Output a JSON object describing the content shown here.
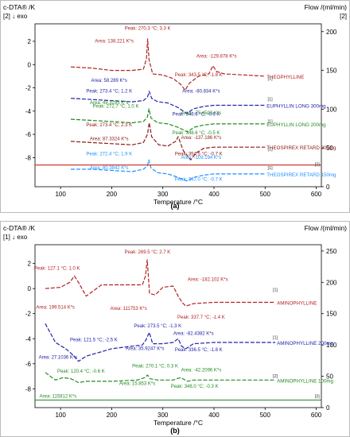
{
  "chart_data": [
    {
      "type": "line",
      "panel_label": "(a)",
      "ylabel_left": "c-DTA® /K",
      "ylabel_left_sub": "[2] ↓ exo",
      "ylabel_right": "Flow /(ml/min)",
      "ylabel_right_sub": "[2]",
      "xlabel": "Temperature /°C",
      "xlim": [
        50,
        610
      ],
      "ylim_left": [
        -10.5,
        3.5
      ],
      "ylim_right": [
        0,
        210
      ],
      "xticks": [
        100,
        200,
        300,
        400,
        500,
        600
      ],
      "yticks_left": [
        -8,
        -6,
        -4,
        -2,
        0,
        2
      ],
      "yticks_right": [
        0,
        50,
        100,
        150,
        200
      ],
      "series": [
        {
          "name": "THEOPHYLLINE",
          "color": "#b22222",
          "x": [
            120,
            160,
            200,
            240,
            262,
            268,
            270.3,
            273,
            280,
            300,
            320,
            335,
            343.5,
            352,
            370,
            390,
            398,
            405,
            420,
            460,
            500
          ],
          "y": [
            -0.2,
            -0.3,
            -0.5,
            -0.5,
            -0.4,
            0.5,
            2.2,
            0.4,
            -0.8,
            -0.9,
            -1.2,
            -1.7,
            -2.2,
            -1.6,
            -1.0,
            -0.8,
            -0.1,
            -0.6,
            -0.8,
            -0.9,
            -1.0
          ]
        },
        {
          "name": "EUPHYLLIN LONG 300mg",
          "color": "#2222aa",
          "x": [
            120,
            160,
            200,
            240,
            262,
            270,
            273.4,
            278,
            290,
            310,
            330,
            346.6,
            360,
            380,
            400,
            440,
            500
          ],
          "y": [
            -2.9,
            -3.0,
            -3.1,
            -3.2,
            -3.1,
            -2.8,
            -2.3,
            -2.9,
            -3.2,
            -3.3,
            -3.7,
            -4.2,
            -3.8,
            -3.6,
            -3.5,
            -3.5,
            -3.5
          ]
        },
        {
          "name": "EUPHYLLIN LONG 200mg",
          "color": "#228b22",
          "x": [
            120,
            160,
            200,
            240,
            262,
            270,
            272.7,
            277,
            290,
            310,
            330,
            348.6,
            360,
            380,
            400,
            440,
            500
          ],
          "y": [
            -4.7,
            -4.8,
            -4.9,
            -5.0,
            -4.9,
            -4.5,
            -3.8,
            -4.6,
            -5.0,
            -5.1,
            -5.4,
            -5.8,
            -5.4,
            -5.2,
            -5.1,
            -5.1,
            -5.1
          ]
        },
        {
          "name": "THEOSPIREX RETARD 300mg",
          "color": "#8b1a1a",
          "x": [
            120,
            160,
            200,
            240,
            262,
            270,
            273.4,
            278,
            292,
            310,
            325,
            330,
            340,
            354.5,
            365,
            380,
            400,
            440,
            500
          ],
          "y": [
            -6.6,
            -6.7,
            -6.8,
            -6.9,
            -6.7,
            -6.0,
            -5.0,
            -6.2,
            -6.9,
            -7.0,
            -6.6,
            -6.2,
            -7.4,
            -8.2,
            -7.6,
            -7.2,
            -7.1,
            -7.1,
            -7.1
          ]
        },
        {
          "name": "THEOSPIREX RETARD 150mg",
          "color": "#1e90ff",
          "x": [
            120,
            160,
            200,
            240,
            262,
            270,
            272.4,
            277,
            290,
            310,
            330,
            347,
            360,
            380,
            400,
            440,
            500
          ],
          "y": [
            -9.0,
            -9.0,
            -9.1,
            -9.2,
            -9.0,
            -8.7,
            -8.2,
            -8.9,
            -9.3,
            -9.4,
            -9.7,
            -10.0,
            -9.7,
            -9.5,
            -9.4,
            -9.4,
            -9.4
          ]
        },
        {
          "name": "Flow",
          "color": "#cc2222",
          "axis": "right",
          "x": [
            50,
            610
          ],
          "y": [
            28,
            28
          ]
        }
      ],
      "annotations": [
        {
          "text": "Peak: 270.3 °C; 3.3 K",
          "x": 270.3,
          "y": 3.0,
          "color": "#b22222"
        },
        {
          "text": "Area: 138.221 K*s",
          "x": 205,
          "y": 1.9,
          "color": "#b22222"
        },
        {
          "text": "Area: -129.878 K*s",
          "x": 405,
          "y": 0.6,
          "color": "#b22222"
        },
        {
          "text": "Peak: 343.5 °C; -1.8 K",
          "x": 370,
          "y": -1.0,
          "color": "#b22222"
        },
        {
          "text": "Area: 58.289 K*s",
          "x": 195,
          "y": -1.5,
          "color": "#2222aa"
        },
        {
          "text": "Peak: 273.4 °C; 1.2 K",
          "x": 195,
          "y": -2.4,
          "color": "#2222aa"
        },
        {
          "text": "Area: -80.834 K*s",
          "x": 375,
          "y": -2.4,
          "color": "#2222aa"
        },
        {
          "text": "Area: 49.3295 K*s",
          "x": 195,
          "y": -3.4,
          "color": "#228b22"
        },
        {
          "text": "Peak: 272.7 °C; 1.0 K",
          "x": 208,
          "y": -3.7,
          "color": "#228b22"
        },
        {
          "text": "Peak: 346.6 °C; -0.6 K",
          "x": 365,
          "y": -4.4,
          "color": "#2222aa"
        },
        {
          "text": "Area: -75.4503 K*s",
          "x": 375,
          "y": -4.3,
          "color": "#228b22"
        },
        {
          "text": "Peak: 273.4 °C; 2.3 K",
          "x": 195,
          "y": -5.3,
          "color": "#8b1a1a"
        },
        {
          "text": "Peak: 348.6 °C; -0.5 K",
          "x": 365,
          "y": -6.0,
          "color": "#228b22"
        },
        {
          "text": "Area: 87.3324 K*s",
          "x": 195,
          "y": -6.5,
          "color": "#8b1a1a"
        },
        {
          "text": "Area: -137.186 K*s",
          "x": 375,
          "y": -6.4,
          "color": "#8b1a1a"
        },
        {
          "text": "Peak: 354.5 °C; -0.7 K",
          "x": 370,
          "y": -7.8,
          "color": "#8b1a1a"
        },
        {
          "text": "Peak: 272.4 °C; 1.9 K",
          "x": 195,
          "y": -7.8,
          "color": "#1e90ff"
        },
        {
          "text": "Area: -109.194 K*s",
          "x": 375,
          "y": -8.1,
          "color": "#1e90ff"
        },
        {
          "text": "Area: 80.3842 K*s",
          "x": 195,
          "y": -9.0,
          "color": "#1e90ff"
        },
        {
          "text": "Peak: 347.0 °C; -0.7 K",
          "x": 370,
          "y": -10.0,
          "color": "#1e90ff"
        }
      ],
      "curve_tags": [
        {
          "text": "[1]",
          "x": 505,
          "y": -1.3
        },
        {
          "text": "[1]",
          "x": 505,
          "y": -3.1
        },
        {
          "text": "[1]",
          "x": 505,
          "y": -5.0
        },
        {
          "text": "[1]",
          "x": 505,
          "y": -7.4
        },
        {
          "text": "[1]",
          "x": 505,
          "y": -9.0
        },
        {
          "text": "[2]",
          "x": 597,
          "y": -8.7
        }
      ]
    },
    {
      "type": "line",
      "panel_label": "(b)",
      "ylabel_left": "c-DTA® /K",
      "ylabel_left_sub": "[1] ↓ exo",
      "ylabel_right": "Flow /(ml/min)",
      "ylabel_right_sub": "",
      "xlabel": "Temperature /°C",
      "xlim": [
        50,
        610
      ],
      "ylim_left": [
        -9.5,
        3.5
      ],
      "ylim_right": [
        0,
        260
      ],
      "xticks": [
        100,
        200,
        300,
        400,
        500,
        600
      ],
      "yticks_left": [
        -8,
        -6,
        -4,
        -2,
        0,
        2
      ],
      "yticks_right": [
        0,
        50,
        100,
        150,
        200,
        250
      ],
      "series": [
        {
          "name": "AMINOPHYLLINE",
          "color": "#b22222",
          "x": [
            70,
            100,
            118,
            127.1,
            135,
            150,
            180,
            230,
            260,
            266,
            269.5,
            274,
            285,
            300,
            320,
            330,
            337.7,
            345,
            360,
            400,
            460,
            520
          ],
          "y": [
            0.0,
            0.1,
            0.5,
            1.0,
            0.5,
            -0.6,
            0.3,
            0.3,
            0.3,
            1.0,
            2.3,
            -0.4,
            -0.5,
            0.1,
            0.2,
            -0.6,
            -1.1,
            -1.4,
            -1.2,
            -1.1,
            -1.1,
            -1.1
          ]
        },
        {
          "name": "AMINOPHYLLINE 200mg",
          "color": "#2222aa",
          "x": [
            70,
            90,
            110,
            121.5,
            135,
            150,
            200,
            240,
            260,
            267,
            273.5,
            280,
            300,
            320,
            330,
            336.5,
            345,
            360,
            400,
            460,
            520
          ],
          "y": [
            -2.8,
            -4.3,
            -4.8,
            -5.2,
            -5.8,
            -5.4,
            -4.8,
            -4.6,
            -4.5,
            -4.1,
            -3.5,
            -4.4,
            -4.4,
            -4.3,
            -4.0,
            -4.6,
            -4.8,
            -4.4,
            -4.3,
            -4.3,
            -4.3
          ]
        },
        {
          "name": "AMINOPHYLLINE 100mg",
          "color": "#228b22",
          "x": [
            70,
            90,
            105,
            120.4,
            135,
            150,
            200,
            250,
            265,
            270.1,
            275,
            290,
            320,
            335,
            348,
            360,
            400,
            460,
            520
          ],
          "y": [
            -6.7,
            -7.3,
            -7.1,
            -7.2,
            -7.5,
            -7.4,
            -7.4,
            -7.3,
            -7.1,
            -6.9,
            -7.2,
            -7.3,
            -7.3,
            -7.1,
            -7.4,
            -7.3,
            -7.3,
            -7.3,
            -7.3
          ]
        },
        {
          "name": "Flow",
          "color": "#228b22",
          "axis": "right",
          "x": [
            50,
            610
          ],
          "y": [
            12,
            12
          ]
        }
      ],
      "annotations": [
        {
          "text": "Peak: 127.1 °C; 1.0 K",
          "x": 93,
          "y": 1.5,
          "color": "#b22222"
        },
        {
          "text": "Peak: 269.5 °C; 2.7 K",
          "x": 270,
          "y": 2.8,
          "color": "#b22222"
        },
        {
          "text": "Area: -182.102 K*s",
          "x": 388,
          "y": 0.6,
          "color": "#b22222"
        },
        {
          "text": "Area: 199.514 K*s",
          "x": 90,
          "y": -1.6,
          "color": "#b22222"
        },
        {
          "text": "Area: 111753 K*s",
          "x": 233,
          "y": -1.7,
          "color": "#b22222"
        },
        {
          "text": "Peak: 337.7 °C; -1.4 K",
          "x": 375,
          "y": -2.4,
          "color": "#b22222"
        },
        {
          "text": "Peak: 273.5 °C; -1.3 K",
          "x": 290,
          "y": -3.1,
          "color": "#2222aa"
        },
        {
          "text": "Area: -82.4382 K*s",
          "x": 360,
          "y": -3.7,
          "color": "#2222aa"
        },
        {
          "text": "Peak: 121.5 °C; -2.5 K",
          "x": 165,
          "y": -4.2,
          "color": "#2222aa"
        },
        {
          "text": "Area: 35.9247 K*s",
          "x": 265,
          "y": -4.9,
          "color": "#2222aa"
        },
        {
          "text": "Peak: 336.5 °C; -1.8 K",
          "x": 370,
          "y": -5.0,
          "color": "#2222aa"
        },
        {
          "text": "Area: 27.1036 K*s",
          "x": 95,
          "y": -5.6,
          "color": "#2222aa"
        },
        {
          "text": "Peak: 270.1 °C; 0.3 K",
          "x": 285,
          "y": -6.3,
          "color": "#228b22"
        },
        {
          "text": "Area: -42.2096 K*s",
          "x": 375,
          "y": -6.6,
          "color": "#228b22"
        },
        {
          "text": "Peak: 120.4 °C; -0.6 K",
          "x": 140,
          "y": -6.7,
          "color": "#228b22"
        },
        {
          "text": "Area: 15.853 K*s",
          "x": 250,
          "y": -7.7,
          "color": "#228b22"
        },
        {
          "text": "Peak: 348.0 °C; -0.3 K",
          "x": 362,
          "y": -7.9,
          "color": "#228b22"
        },
        {
          "text": "Area: 115812 K*s",
          "x": 95,
          "y": -8.7,
          "color": "#228b22"
        }
      ],
      "curve_tags": [
        {
          "text": "[1]",
          "x": 515,
          "y": -0.2
        },
        {
          "text": "[1]",
          "x": 515,
          "y": -4.0
        },
        {
          "text": "[2]",
          "x": 515,
          "y": -7.1
        },
        {
          "text": "[3]",
          "x": 597,
          "y": -8.7
        }
      ]
    }
  ]
}
